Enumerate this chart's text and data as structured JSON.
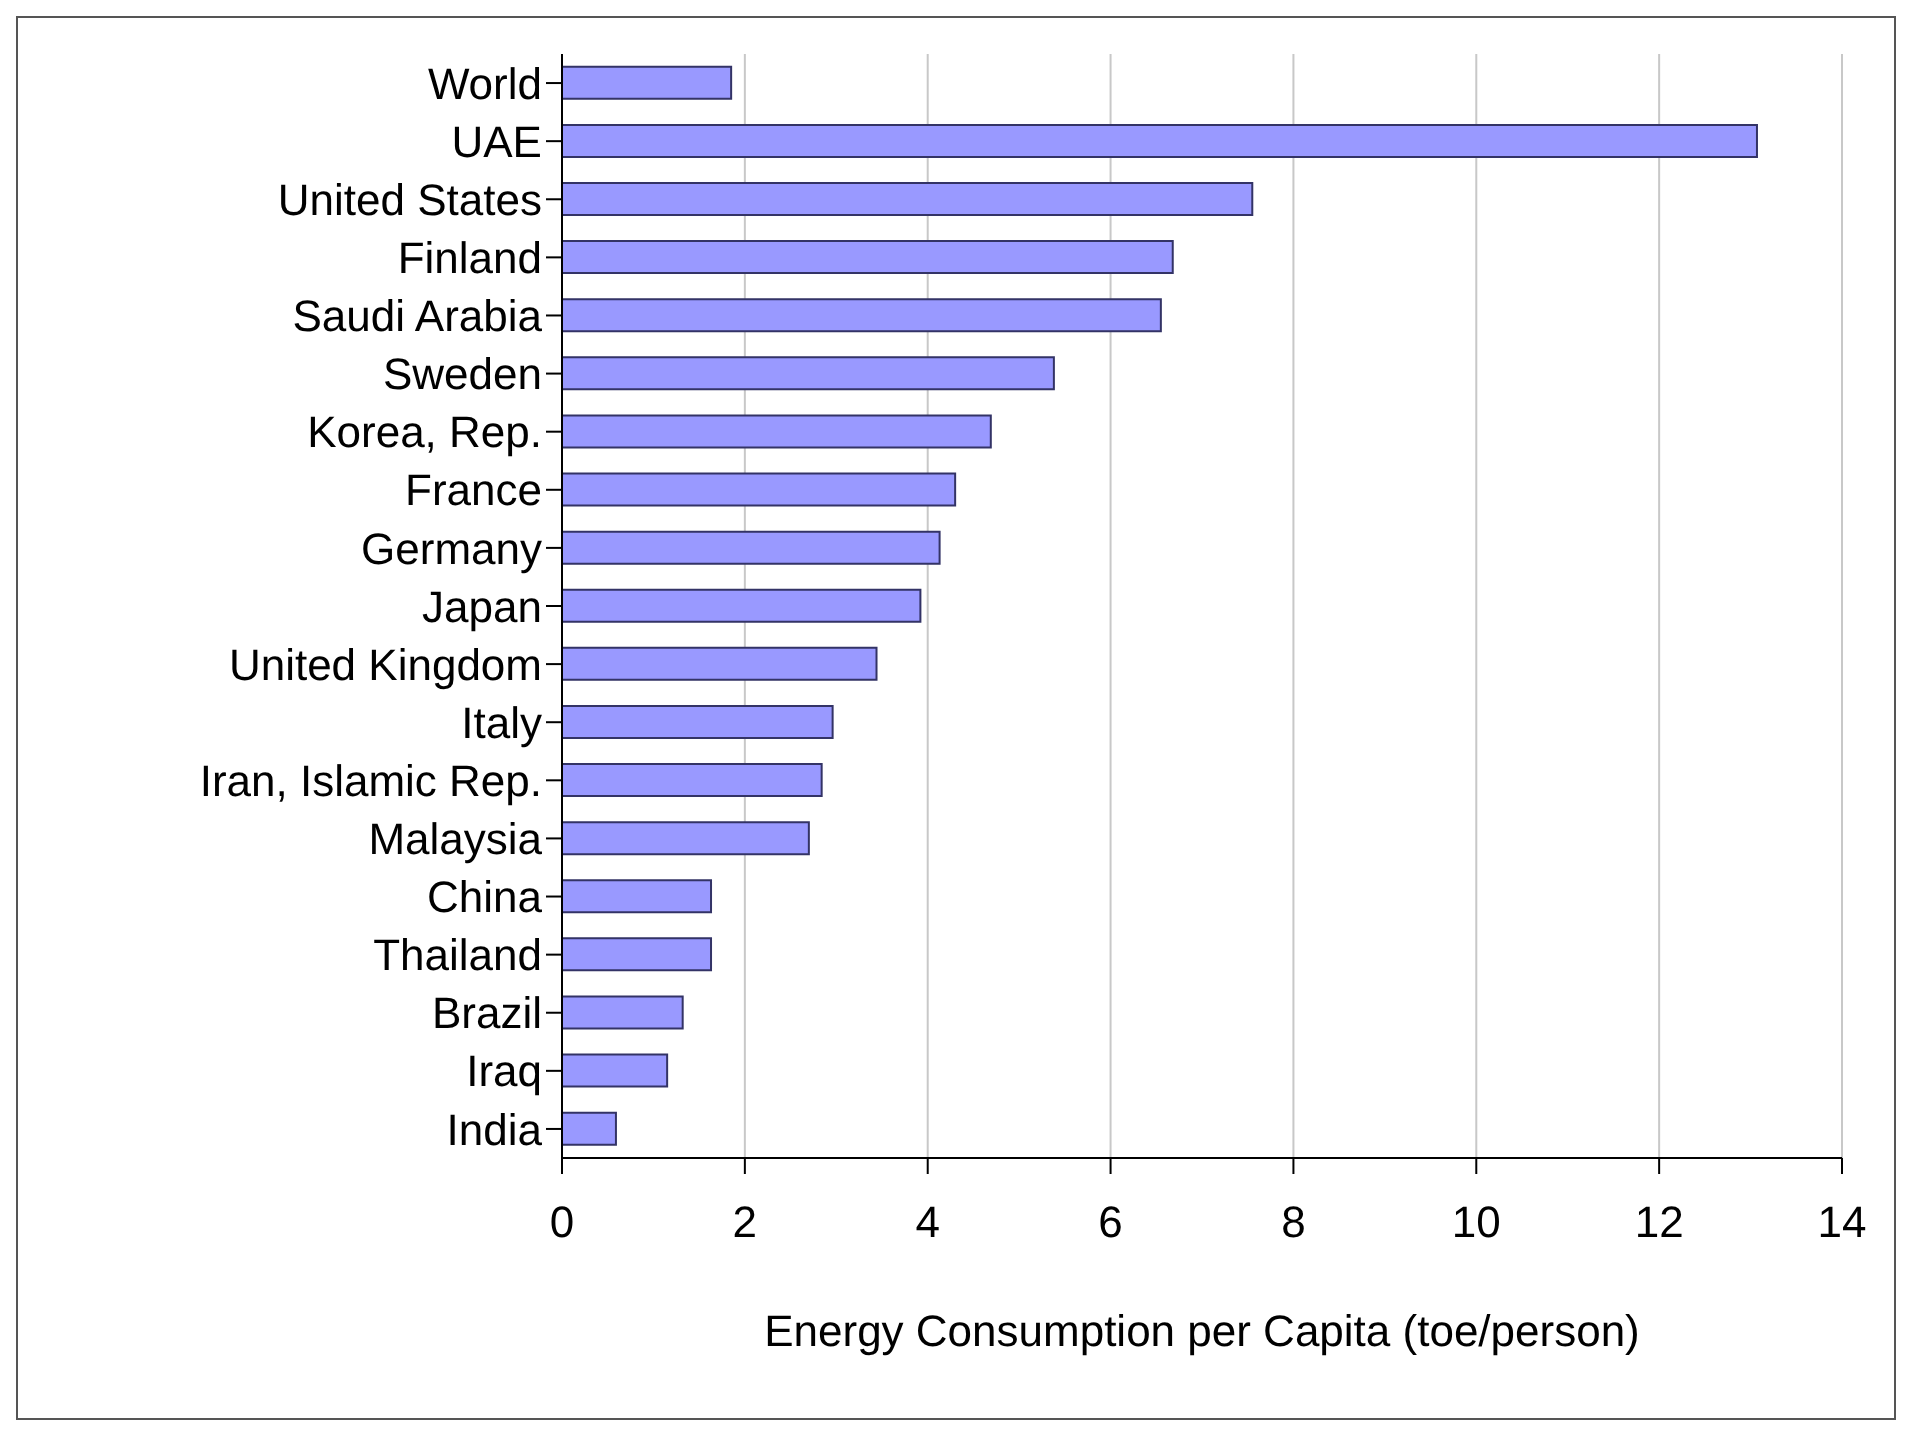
{
  "chart_data": {
    "type": "bar",
    "orientation": "horizontal",
    "xlabel": "Energy Consumption per Capita (toe/person)",
    "categories": [
      "World",
      "UAE",
      "United States",
      "Finland",
      "Saudi Arabia",
      "Sweden",
      "Korea, Rep.",
      "France",
      "Germany",
      "Japan",
      "United Kingdom",
      "Italy",
      "Iran, Islamic Rep.",
      "Malaysia",
      "China",
      "Thailand",
      "Brazil",
      "Iraq",
      "India"
    ],
    "values": [
      1.85,
      13.07,
      7.55,
      6.68,
      6.55,
      5.38,
      4.69,
      4.3,
      4.13,
      3.92,
      3.44,
      2.96,
      2.84,
      2.7,
      1.63,
      1.63,
      1.32,
      1.15,
      0.59
    ],
    "color": "#9999ff",
    "xlim": [
      0,
      14
    ],
    "xticks": [
      0,
      2,
      4,
      6,
      8,
      10,
      12,
      14
    ],
    "grid": "x",
    "legend": false
  }
}
